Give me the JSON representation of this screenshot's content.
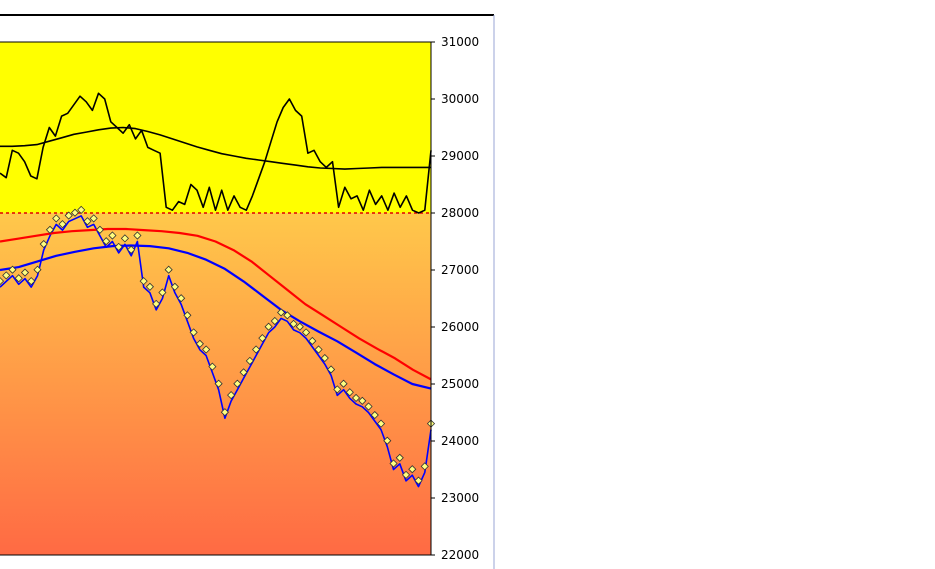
{
  "chart_data": {
    "type": "line",
    "ylim": [
      22000,
      31000
    ],
    "y_ticks": [
      22000,
      23000,
      24000,
      25000,
      26000,
      27000,
      28000,
      29000,
      30000,
      31000
    ],
    "y_tick_labels": [
      "22000",
      "23000",
      "24000",
      "25000",
      "26000",
      "27000",
      "28000",
      "29000",
      "30000",
      "31000"
    ],
    "axis_side": "right",
    "reference_level": 28000,
    "colors": {
      "upper_panel_bg": "#ffff00",
      "gradient_top": "#ffc84a",
      "gradient_bottom": "#ff6a44",
      "reference_line": "#e00000",
      "upper_series": "#000000",
      "price_series": "#0000ff",
      "moving_average_long": "#ff0000",
      "moving_average_short": "#0000ff",
      "markers_fill": "#ffff80",
      "markers_stroke": "#333333",
      "frame": "#000000",
      "divider": "#9aa6d6"
    },
    "series": [
      {
        "key": "upper_oscillator",
        "values": [
          28700,
          28620,
          29100,
          29050,
          28900,
          28650,
          28600,
          29150,
          29500,
          29350,
          29700,
          29750,
          29900,
          30050,
          29950,
          29800,
          30100,
          30000,
          29600,
          29500,
          29400,
          29550,
          29300,
          29450,
          29150,
          29100,
          29050,
          28100,
          28050,
          28200,
          28150,
          28500,
          28400,
          28100,
          28450,
          28050,
          28400,
          28050,
          28300,
          28100,
          28050,
          28300,
          28600,
          28900,
          29250,
          29600,
          29850,
          30000,
          29800,
          29700,
          29050,
          29100,
          28900,
          28800,
          28900,
          28100,
          28450,
          28250,
          28300,
          28050,
          28400,
          28150,
          28300,
          28050,
          28350,
          28100,
          28300,
          28050,
          28000,
          28050,
          29100
        ]
      },
      {
        "key": "upper_moving_average",
        "values": [
          29170,
          29170,
          29180,
          29200,
          29260,
          29320,
          29380,
          29420,
          29460,
          29490,
          29500,
          29480,
          29430,
          29370,
          29300,
          29230,
          29160,
          29100,
          29040,
          29000,
          28960,
          28930,
          28900,
          28870,
          28840,
          28810,
          28790,
          28780,
          28770,
          28780,
          28790,
          28800,
          28800,
          28800,
          28800,
          28800
        ]
      },
      {
        "key": "price",
        "values": [
          26700,
          26800,
          26900,
          26750,
          26850,
          26700,
          26900,
          27350,
          27600,
          27800,
          27700,
          27850,
          27900,
          27950,
          27750,
          27800,
          27600,
          27400,
          27500,
          27300,
          27450,
          27250,
          27500,
          26700,
          26600,
          26300,
          26500,
          26900,
          26600,
          26400,
          26100,
          25800,
          25600,
          25500,
          25200,
          24900,
          24400,
          24700,
          24900,
          25100,
          25300,
          25500,
          25700,
          25900,
          26000,
          26150,
          26100,
          25950,
          25900,
          25800,
          25650,
          25500,
          25350,
          25150,
          24800,
          24900,
          24750,
          24650,
          24600,
          24500,
          24350,
          24200,
          23900,
          23500,
          23600,
          23300,
          23400,
          23200,
          23450,
          24200
        ]
      },
      {
        "key": "moving_average_long",
        "values": [
          27500,
          27550,
          27600,
          27650,
          27680,
          27700,
          27720,
          27720,
          27700,
          27680,
          27650,
          27600,
          27500,
          27350,
          27150,
          26900,
          26650,
          26400,
          26200,
          26000,
          25800,
          25620,
          25450,
          25250,
          25080
        ]
      },
      {
        "key": "moving_average_short",
        "values": [
          27000,
          27050,
          27150,
          27250,
          27320,
          27380,
          27420,
          27430,
          27420,
          27380,
          27300,
          27180,
          27020,
          26800,
          26550,
          26300,
          26100,
          25920,
          25750,
          25550,
          25350,
          25170,
          25000,
          24920
        ]
      }
    ]
  }
}
